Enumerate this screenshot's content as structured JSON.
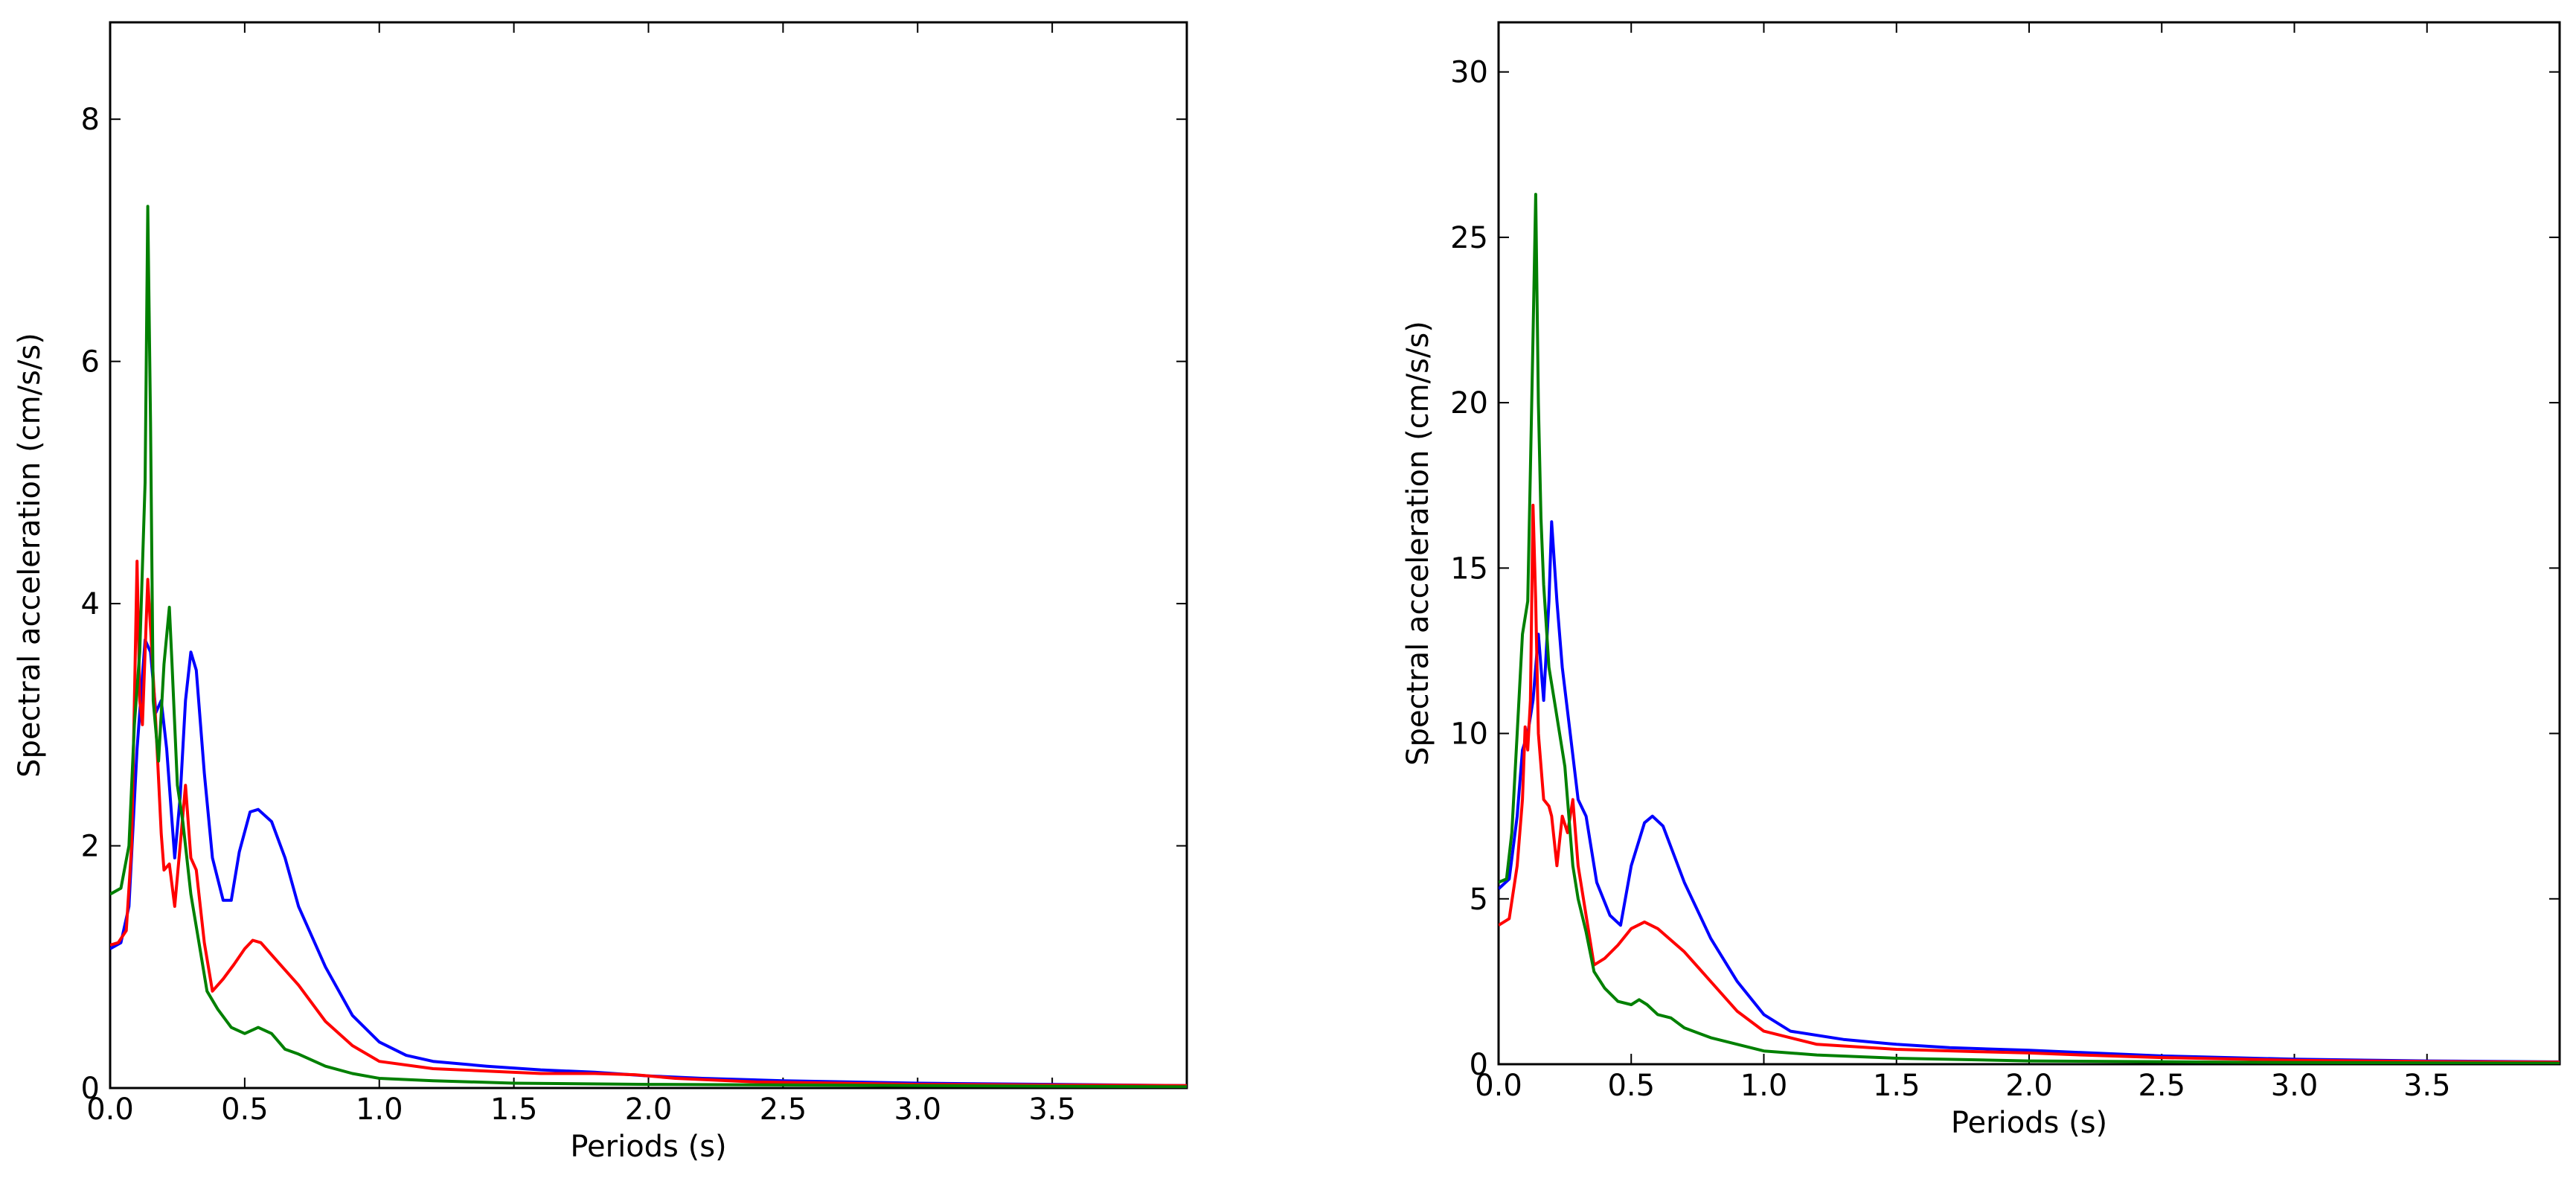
{
  "chart_data": [
    {
      "type": "line",
      "xlabel": "Periods (s)",
      "ylabel": "Spectral acceleration (cm/s/s)",
      "xlim": [
        0,
        4.0
      ],
      "ylim": [
        0,
        8.8
      ],
      "xticks": [
        "0.0",
        "0.5",
        "1.0",
        "1.5",
        "2.0",
        "2.5",
        "3.0",
        "3.5"
      ],
      "xtick_values": [
        0,
        0.5,
        1.0,
        1.5,
        2.0,
        2.5,
        3.0,
        3.5
      ],
      "yticks": [
        "0",
        "2",
        "4",
        "6",
        "8"
      ],
      "ytick_values": [
        0,
        2,
        4,
        6,
        8
      ],
      "grid": false,
      "legend": "none",
      "series": [
        {
          "color": "#0000ff",
          "points": [
            [
              0,
              1.15
            ],
            [
              0.04,
              1.2
            ],
            [
              0.07,
              1.5
            ],
            [
              0.1,
              2.8
            ],
            [
              0.13,
              3.7
            ],
            [
              0.15,
              3.6
            ],
            [
              0.17,
              3.1
            ],
            [
              0.19,
              3.2
            ],
            [
              0.21,
              2.8
            ],
            [
              0.24,
              1.9
            ],
            [
              0.26,
              2.4
            ],
            [
              0.28,
              3.2
            ],
            [
              0.3,
              3.6
            ],
            [
              0.32,
              3.45
            ],
            [
              0.35,
              2.6
            ],
            [
              0.38,
              1.9
            ],
            [
              0.42,
              1.55
            ],
            [
              0.45,
              1.55
            ],
            [
              0.48,
              1.95
            ],
            [
              0.52,
              2.28
            ],
            [
              0.55,
              2.3
            ],
            [
              0.6,
              2.2
            ],
            [
              0.65,
              1.9
            ],
            [
              0.7,
              1.5
            ],
            [
              0.8,
              1.0
            ],
            [
              0.9,
              0.6
            ],
            [
              1.0,
              0.38
            ],
            [
              1.1,
              0.27
            ],
            [
              1.2,
              0.22
            ],
            [
              1.4,
              0.18
            ],
            [
              1.6,
              0.15
            ],
            [
              1.8,
              0.13
            ],
            [
              2.0,
              0.1
            ],
            [
              2.2,
              0.08
            ],
            [
              2.5,
              0.06
            ],
            [
              3.0,
              0.04
            ],
            [
              3.5,
              0.03
            ],
            [
              4.0,
              0.02
            ]
          ]
        },
        {
          "color": "#ff0000",
          "points": [
            [
              0,
              1.18
            ],
            [
              0.03,
              1.2
            ],
            [
              0.06,
              1.3
            ],
            [
              0.08,
              2.0
            ],
            [
              0.1,
              4.35
            ],
            [
              0.11,
              3.2
            ],
            [
              0.12,
              3.0
            ],
            [
              0.14,
              4.2
            ],
            [
              0.15,
              3.8
            ],
            [
              0.17,
              3.0
            ],
            [
              0.19,
              2.1
            ],
            [
              0.2,
              1.8
            ],
            [
              0.22,
              1.85
            ],
            [
              0.24,
              1.5
            ],
            [
              0.26,
              2.0
            ],
            [
              0.28,
              2.5
            ],
            [
              0.3,
              1.9
            ],
            [
              0.32,
              1.8
            ],
            [
              0.35,
              1.2
            ],
            [
              0.38,
              0.8
            ],
            [
              0.42,
              0.9
            ],
            [
              0.46,
              1.02
            ],
            [
              0.5,
              1.15
            ],
            [
              0.53,
              1.22
            ],
            [
              0.56,
              1.2
            ],
            [
              0.6,
              1.1
            ],
            [
              0.7,
              0.85
            ],
            [
              0.8,
              0.55
            ],
            [
              0.9,
              0.35
            ],
            [
              1.0,
              0.22
            ],
            [
              1.2,
              0.16
            ],
            [
              1.4,
              0.14
            ],
            [
              1.6,
              0.12
            ],
            [
              1.8,
              0.12
            ],
            [
              1.95,
              0.11
            ],
            [
              2.1,
              0.08
            ],
            [
              2.4,
              0.05
            ],
            [
              3.0,
              0.03
            ],
            [
              4.0,
              0.02
            ]
          ]
        },
        {
          "color": "#008000",
          "points": [
            [
              0,
              1.6
            ],
            [
              0.04,
              1.65
            ],
            [
              0.07,
              2.0
            ],
            [
              0.09,
              3.0
            ],
            [
              0.11,
              3.6
            ],
            [
              0.13,
              5.0
            ],
            [
              0.14,
              7.28
            ],
            [
              0.15,
              5.5
            ],
            [
              0.16,
              3.2
            ],
            [
              0.18,
              2.7
            ],
            [
              0.2,
              3.5
            ],
            [
              0.22,
              3.97
            ],
            [
              0.23,
              3.5
            ],
            [
              0.25,
              2.5
            ],
            [
              0.27,
              2.2
            ],
            [
              0.3,
              1.6
            ],
            [
              0.33,
              1.2
            ],
            [
              0.36,
              0.8
            ],
            [
              0.4,
              0.65
            ],
            [
              0.45,
              0.5
            ],
            [
              0.5,
              0.45
            ],
            [
              0.55,
              0.5
            ],
            [
              0.6,
              0.45
            ],
            [
              0.65,
              0.32
            ],
            [
              0.7,
              0.28
            ],
            [
              0.8,
              0.18
            ],
            [
              0.9,
              0.12
            ],
            [
              1.0,
              0.08
            ],
            [
              1.2,
              0.06
            ],
            [
              1.5,
              0.04
            ],
            [
              2.0,
              0.03
            ],
            [
              3.0,
              0.02
            ],
            [
              4.0,
              0.01
            ]
          ]
        }
      ]
    },
    {
      "type": "line",
      "xlabel": "Periods (s)",
      "ylabel": "Spectral acceleration (cm/s/s)",
      "xlim": [
        0,
        4.0
      ],
      "ylim": [
        0,
        31.5
      ],
      "xticks": [
        "0.0",
        "0.5",
        "1.0",
        "1.5",
        "2.0",
        "2.5",
        "3.0",
        "3.5"
      ],
      "xtick_values": [
        0,
        0.5,
        1.0,
        1.5,
        2.0,
        2.5,
        3.0,
        3.5
      ],
      "yticks": [
        "0",
        "5",
        "10",
        "15",
        "20",
        "25",
        "30"
      ],
      "ytick_values": [
        0,
        5,
        10,
        15,
        20,
        25,
        30
      ],
      "grid": false,
      "legend": "none",
      "series": [
        {
          "color": "#0000ff",
          "points": [
            [
              0,
              5.3
            ],
            [
              0.04,
              5.6
            ],
            [
              0.07,
              7.5
            ],
            [
              0.09,
              9.5
            ],
            [
              0.11,
              10.0
            ],
            [
              0.13,
              11.0
            ],
            [
              0.15,
              13.0
            ],
            [
              0.17,
              11.0
            ],
            [
              0.19,
              14.0
            ],
            [
              0.2,
              16.4
            ],
            [
              0.22,
              14.0
            ],
            [
              0.24,
              12.0
            ],
            [
              0.27,
              10.0
            ],
            [
              0.3,
              8.0
            ],
            [
              0.33,
              7.5
            ],
            [
              0.37,
              5.5
            ],
            [
              0.42,
              4.5
            ],
            [
              0.46,
              4.2
            ],
            [
              0.5,
              6.0
            ],
            [
              0.55,
              7.3
            ],
            [
              0.58,
              7.5
            ],
            [
              0.62,
              7.2
            ],
            [
              0.7,
              5.5
            ],
            [
              0.8,
              3.8
            ],
            [
              0.9,
              2.5
            ],
            [
              1.0,
              1.5
            ],
            [
              1.1,
              1.0
            ],
            [
              1.3,
              0.75
            ],
            [
              1.5,
              0.6
            ],
            [
              1.7,
              0.5
            ],
            [
              2.0,
              0.42
            ],
            [
              2.5,
              0.25
            ],
            [
              3.0,
              0.15
            ],
            [
              3.5,
              0.1
            ],
            [
              4.0,
              0.07
            ]
          ]
        },
        {
          "color": "#ff0000",
          "points": [
            [
              0,
              4.2
            ],
            [
              0.04,
              4.4
            ],
            [
              0.07,
              6.0
            ],
            [
              0.09,
              8.0
            ],
            [
              0.1,
              10.2
            ],
            [
              0.11,
              9.5
            ],
            [
              0.12,
              11.0
            ],
            [
              0.13,
              16.9
            ],
            [
              0.14,
              14.0
            ],
            [
              0.15,
              10.0
            ],
            [
              0.17,
              8.0
            ],
            [
              0.19,
              7.8
            ],
            [
              0.2,
              7.5
            ],
            [
              0.22,
              6.0
            ],
            [
              0.24,
              7.5
            ],
            [
              0.26,
              7.0
            ],
            [
              0.28,
              8.0
            ],
            [
              0.3,
              6.0
            ],
            [
              0.33,
              4.5
            ],
            [
              0.36,
              3.0
            ],
            [
              0.4,
              3.2
            ],
            [
              0.45,
              3.6
            ],
            [
              0.5,
              4.1
            ],
            [
              0.55,
              4.3
            ],
            [
              0.6,
              4.1
            ],
            [
              0.7,
              3.4
            ],
            [
              0.8,
              2.5
            ],
            [
              0.9,
              1.6
            ],
            [
              1.0,
              1.0
            ],
            [
              1.2,
              0.6
            ],
            [
              1.5,
              0.45
            ],
            [
              1.8,
              0.38
            ],
            [
              2.0,
              0.34
            ],
            [
              2.2,
              0.28
            ],
            [
              2.5,
              0.2
            ],
            [
              3.0,
              0.12
            ],
            [
              3.5,
              0.08
            ],
            [
              4.0,
              0.06
            ]
          ]
        },
        {
          "color": "#008000",
          "points": [
            [
              0,
              5.5
            ],
            [
              0.03,
              5.6
            ],
            [
              0.05,
              7.0
            ],
            [
              0.07,
              10.0
            ],
            [
              0.09,
              13.0
            ],
            [
              0.11,
              14.0
            ],
            [
              0.12,
              18.0
            ],
            [
              0.13,
              22.0
            ],
            [
              0.14,
              26.3
            ],
            [
              0.15,
              20.0
            ],
            [
              0.16,
              16.5
            ],
            [
              0.17,
              14.5
            ],
            [
              0.19,
              12.0
            ],
            [
              0.21,
              11.0
            ],
            [
              0.23,
              10.0
            ],
            [
              0.25,
              9.0
            ],
            [
              0.28,
              6.0
            ],
            [
              0.3,
              5.0
            ],
            [
              0.33,
              4.0
            ],
            [
              0.36,
              2.8
            ],
            [
              0.4,
              2.3
            ],
            [
              0.45,
              1.9
            ],
            [
              0.5,
              1.8
            ],
            [
              0.53,
              1.95
            ],
            [
              0.56,
              1.8
            ],
            [
              0.6,
              1.5
            ],
            [
              0.65,
              1.4
            ],
            [
              0.7,
              1.1
            ],
            [
              0.8,
              0.8
            ],
            [
              0.9,
              0.6
            ],
            [
              1.0,
              0.4
            ],
            [
              1.2,
              0.28
            ],
            [
              1.5,
              0.18
            ],
            [
              2.0,
              0.1
            ],
            [
              3.0,
              0.05
            ],
            [
              4.0,
              0.03
            ]
          ]
        }
      ]
    }
  ]
}
